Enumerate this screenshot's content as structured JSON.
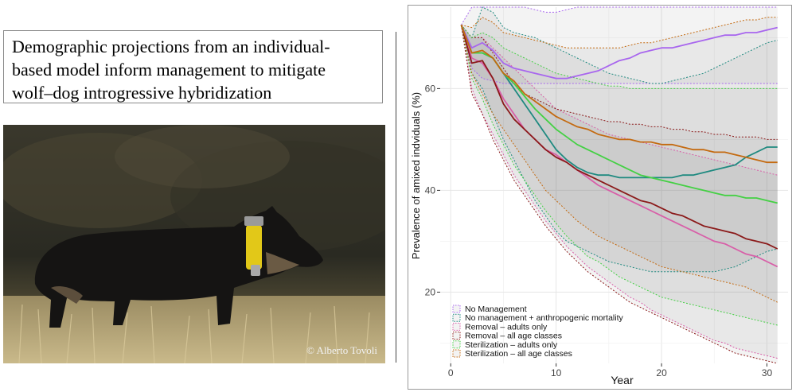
{
  "title": "Demographic projections from an individual-based model inform management to mitigate wolf–dog introgressive hybridization",
  "title_lines": [
    "Demographic projections from an individual-",
    "based model inform management to mitigate",
    "wolf–dog introgressive hybridization"
  ],
  "photo": {
    "credit": "© Alberto Tovoli",
    "subject": "wolf-dog-with-collar"
  },
  "chart_data": {
    "type": "line",
    "title": "",
    "xlabel": "Year",
    "ylabel": "Prevalence of amixed indviduals (%)",
    "xlim": [
      -1,
      32
    ],
    "ylim": [
      6,
      76
    ],
    "xticks": [
      0,
      10,
      20,
      30
    ],
    "yticks": [
      20,
      40,
      60
    ],
    "grid": true,
    "legend_position": "bottom-left",
    "series": [
      {
        "name": "No Management",
        "color": "#a866ee",
        "x": [
          1,
          2,
          3,
          4,
          5,
          6,
          7,
          8,
          9,
          10,
          11,
          12,
          13,
          14,
          15,
          16,
          17,
          18,
          19,
          20,
          21,
          22,
          23,
          24,
          25,
          26,
          27,
          28,
          29,
          30,
          31
        ],
        "values": [
          72.5,
          68,
          69,
          67.5,
          65,
          64,
          63.5,
          63,
          62.5,
          62,
          62,
          62.5,
          63,
          63.5,
          64.5,
          65.5,
          66,
          67,
          67.5,
          68,
          68,
          68.5,
          69,
          69.5,
          70,
          70.5,
          70.5,
          71,
          71,
          71.5,
          72
        ],
        "lower": [
          72.5,
          64,
          62,
          61.5,
          61,
          61,
          61,
          61,
          61,
          61,
          61,
          61,
          61,
          61,
          61,
          61,
          61,
          61,
          61,
          61,
          61,
          61,
          61,
          61,
          61,
          61,
          61,
          61,
          61,
          61,
          61
        ],
        "upper": [
          72.5,
          76,
          77,
          77,
          76,
          76,
          76,
          75.5,
          75,
          75,
          75.5,
          76,
          76.5,
          77,
          77,
          77,
          77,
          77,
          77,
          77,
          77,
          77,
          77,
          77,
          77,
          77,
          77,
          77,
          77,
          77,
          77
        ]
      },
      {
        "name": "No management + anthropogenic mortality",
        "color": "#1f8a80",
        "x": [
          1,
          2,
          3,
          4,
          5,
          6,
          7,
          8,
          9,
          10,
          11,
          12,
          13,
          14,
          15,
          16,
          17,
          18,
          19,
          20,
          21,
          22,
          23,
          24,
          25,
          26,
          27,
          28,
          29,
          30,
          31
        ],
        "values": [
          72.5,
          67,
          67,
          66,
          63,
          60,
          57,
          54,
          51,
          48,
          46,
          44.5,
          43.5,
          43,
          43,
          42.5,
          42.5,
          42.5,
          42.5,
          42.5,
          42.5,
          43,
          43,
          43.5,
          44,
          44.5,
          45,
          46.5,
          47.5,
          48.5,
          48.5
        ],
        "lower": [
          72.5,
          63,
          60,
          55,
          50,
          46,
          42,
          38,
          35,
          32,
          30,
          29,
          28,
          27,
          26,
          25.5,
          25,
          24.5,
          24,
          24,
          24,
          24,
          24,
          24,
          24,
          24.5,
          25,
          26,
          27,
          28,
          28.5
        ],
        "upper": [
          72.5,
          70,
          76,
          75,
          72,
          71,
          70.5,
          70,
          69,
          68,
          67,
          66,
          65,
          64,
          63,
          62.5,
          62,
          61.5,
          61,
          61,
          61.5,
          62,
          62.5,
          63,
          64,
          65,
          66,
          67,
          68,
          69,
          69.5
        ]
      },
      {
        "name": "Removal – adults only",
        "color": "#d85fa8",
        "x": [
          1,
          2,
          3,
          4,
          5,
          6,
          7,
          8,
          9,
          10,
          11,
          12,
          13,
          14,
          15,
          16,
          17,
          18,
          19,
          20,
          21,
          22,
          23,
          24,
          25,
          26,
          27,
          28,
          29,
          30,
          31
        ],
        "values": [
          72.5,
          66,
          65,
          62,
          58,
          55,
          52,
          50,
          48,
          47,
          45.5,
          44,
          42.5,
          41,
          40,
          39,
          38,
          37,
          36,
          35,
          34,
          33,
          32,
          31,
          30,
          29.5,
          28.5,
          27.5,
          27,
          26,
          25
        ],
        "lower": [
          72.5,
          60,
          55,
          51,
          47,
          43,
          40,
          37,
          34,
          31.5,
          29,
          27,
          25,
          23.5,
          22,
          20.5,
          19,
          18,
          16.5,
          15.5,
          14.5,
          13.5,
          12.5,
          11.5,
          10.5,
          10,
          9,
          8.5,
          8,
          7.5,
          7
        ],
        "upper": [
          72.5,
          70,
          70,
          68,
          66,
          64,
          62,
          60,
          58,
          56,
          55,
          54,
          53,
          52,
          51,
          50.5,
          50,
          49.5,
          49,
          48.5,
          48,
          47.5,
          47,
          46.5,
          46,
          45.5,
          45,
          44.5,
          44,
          43.5,
          43
        ]
      },
      {
        "name": "Removal – all age classes",
        "color": "#8b1a1a",
        "x": [
          1,
          2,
          3,
          4,
          5,
          6,
          7,
          8,
          9,
          10,
          11,
          12,
          13,
          14,
          15,
          16,
          17,
          18,
          19,
          20,
          21,
          22,
          23,
          24,
          25,
          26,
          27,
          28,
          29,
          30,
          31
        ],
        "values": [
          72.5,
          65,
          65.5,
          62,
          57,
          54,
          52,
          50,
          48,
          46.5,
          45.5,
          44,
          43,
          42,
          41,
          40,
          39,
          38,
          37.5,
          36.5,
          35.5,
          35,
          34,
          33,
          32.5,
          32,
          31.5,
          30.5,
          30,
          29.5,
          28.5
        ],
        "lower": [
          72.5,
          59,
          55,
          50,
          46,
          42,
          39,
          36,
          33,
          30.5,
          28,
          26,
          24,
          22.5,
          21,
          19.5,
          18,
          17,
          16,
          15,
          14,
          13,
          12,
          11,
          10,
          9,
          8,
          7.5,
          7,
          6.5,
          6
        ],
        "upper": [
          72.5,
          70,
          70,
          67,
          64,
          61,
          59,
          58,
          57,
          56,
          55.5,
          55,
          54.5,
          54,
          53.5,
          53.5,
          53,
          53,
          52.5,
          52.5,
          52,
          52,
          51.5,
          51.5,
          51,
          51,
          50.5,
          50.5,
          50.5,
          50,
          50
        ]
      },
      {
        "name": "Sterilization – adults only",
        "color": "#44d044",
        "x": [
          1,
          2,
          3,
          4,
          5,
          6,
          7,
          8,
          9,
          10,
          11,
          12,
          13,
          14,
          15,
          16,
          17,
          18,
          19,
          20,
          21,
          22,
          23,
          24,
          25,
          26,
          27,
          28,
          29,
          30,
          31
        ],
        "values": [
          72.5,
          67,
          67,
          66,
          63,
          61,
          58.5,
          56,
          54,
          52,
          50.5,
          49,
          48,
          47,
          46,
          45,
          44,
          43,
          42.5,
          42,
          41.5,
          41,
          40.5,
          40,
          39.5,
          39,
          39,
          38.5,
          38.5,
          38,
          37.5
        ],
        "lower": [
          72.5,
          62,
          58,
          53,
          49,
          45,
          42,
          39,
          36,
          33.5,
          31,
          29,
          27,
          26,
          24.5,
          23,
          22,
          21,
          20,
          19,
          18.5,
          18,
          17.5,
          17,
          16.5,
          16,
          15.5,
          15,
          14.5,
          14,
          13.5
        ],
        "upper": [
          72.5,
          70,
          71,
          70,
          68,
          67,
          66,
          65,
          64,
          63,
          62.5,
          62,
          61.5,
          61,
          60.5,
          60.5,
          60,
          60,
          60,
          60,
          60,
          60,
          60,
          60,
          60,
          60,
          60,
          60,
          60,
          60,
          60
        ]
      },
      {
        "name": "Sterilization – all age classes",
        "color": "#c46a10",
        "x": [
          1,
          2,
          3,
          4,
          5,
          6,
          7,
          8,
          9,
          10,
          11,
          12,
          13,
          14,
          15,
          16,
          17,
          18,
          19,
          20,
          21,
          22,
          23,
          24,
          25,
          26,
          27,
          28,
          29,
          30,
          31
        ],
        "values": [
          72.5,
          67,
          67.5,
          66,
          63,
          61.5,
          59,
          57.5,
          56,
          54.5,
          53.5,
          52.5,
          52,
          51,
          50.5,
          50,
          50,
          49.5,
          49.5,
          49,
          49,
          48.5,
          48,
          48,
          47.5,
          47.5,
          47,
          46.5,
          46,
          45.5,
          45.5
        ],
        "lower": [
          72.5,
          63,
          59,
          55,
          52,
          49,
          46,
          43,
          40,
          38,
          36,
          34,
          32.5,
          31,
          30,
          29,
          28,
          27,
          26,
          25,
          24.5,
          24,
          23.5,
          23,
          22.5,
          22,
          21.5,
          21,
          20,
          19,
          18
        ],
        "upper": [
          72.5,
          72,
          74,
          73,
          71,
          70.5,
          70,
          69.5,
          69,
          68.5,
          68,
          68,
          68,
          68,
          68,
          68,
          68.5,
          69,
          69,
          69.5,
          70,
          70.5,
          71,
          71.5,
          72,
          72.5,
          73,
          73.5,
          73.5,
          74,
          74
        ]
      }
    ]
  }
}
